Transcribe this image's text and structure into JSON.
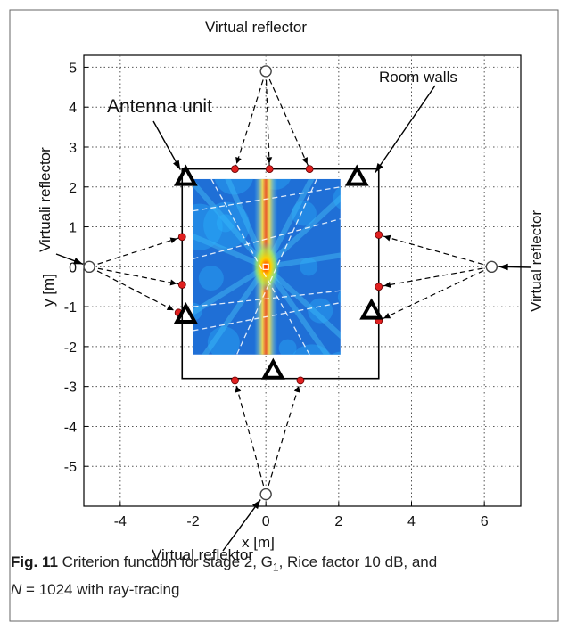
{
  "chart_data": {
    "type": "scatter",
    "title": "",
    "xlabel": "x [m]",
    "ylabel": "y [m]",
    "xlim": [
      -5,
      7
    ],
    "ylim": [
      -6,
      5.3
    ],
    "xticks": [
      -4,
      -2,
      0,
      2,
      4,
      6
    ],
    "yticks": [
      5,
      4,
      3,
      2,
      1,
      0,
      -1,
      -2,
      -3,
      -4,
      -5
    ],
    "grid": true,
    "room_walls": {
      "x": [
        -2.3,
        3.1
      ],
      "y": [
        -2.8,
        2.45
      ]
    },
    "heatmap_extent": {
      "x": [
        -2.0,
        2.05
      ],
      "y": [
        -2.2,
        2.2
      ]
    },
    "antenna_units": [
      {
        "x": -2.2,
        "y": 2.25
      },
      {
        "x": 2.5,
        "y": 2.25
      },
      {
        "x": -2.2,
        "y": -1.2
      },
      {
        "x": 2.9,
        "y": -1.1
      },
      {
        "x": 0.2,
        "y": -2.6
      }
    ],
    "virtual_reflectors": [
      {
        "x": 0,
        "y": 4.9
      },
      {
        "x": -4.85,
        "y": 0
      },
      {
        "x": 6.2,
        "y": 0
      },
      {
        "x": 0,
        "y": -5.7
      }
    ],
    "wall_hits": [
      {
        "x": -0.85,
        "y": 2.45
      },
      {
        "x": 0.1,
        "y": 2.45
      },
      {
        "x": 1.2,
        "y": 2.45
      },
      {
        "x": -2.3,
        "y": 0.75
      },
      {
        "x": -2.3,
        "y": -0.45
      },
      {
        "x": -2.4,
        "y": -1.15
      },
      {
        "x": 3.1,
        "y": 0.8
      },
      {
        "x": 3.1,
        "y": -0.5
      },
      {
        "x": 3.1,
        "y": -1.35
      },
      {
        "x": -0.85,
        "y": -2.85
      },
      {
        "x": 0.95,
        "y": -2.85
      }
    ],
    "target": {
      "x": 0,
      "y": 0
    },
    "annotations": {
      "top": "Virtual reflector",
      "left": "Virtuali reflector",
      "right": "Virtual reflector",
      "bottom": "Virtual reflektor",
      "antenna": "Antenna unit",
      "walls": "Room walls"
    }
  },
  "caption": {
    "label": "Fig. 11",
    "line1": " Criterion function for stage 2, G",
    "sub": "1",
    "line1b": ", Rice factor 10 dB, and",
    "line2a": "N",
    "line2b": " = 1024 with ray-tracing"
  },
  "colors": {
    "wall": "#000000",
    "grid": "#555555",
    "hit": "#e02020",
    "ray": "#000000"
  }
}
